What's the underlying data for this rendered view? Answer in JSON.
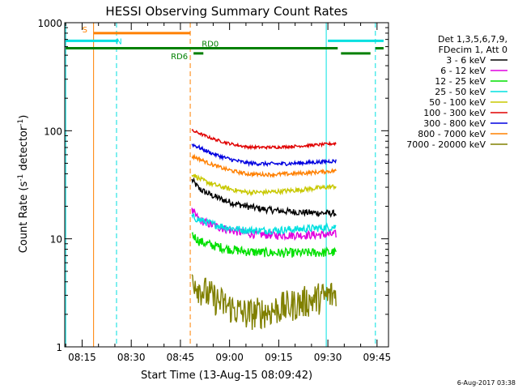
{
  "chart_data": {
    "type": "line",
    "title": "HESSI Observing Summary Count Rates",
    "xlabel": "Start Time (13-Aug-15 08:09:42)",
    "ylabel_main": "Count Rate (s",
    "ylabel_sup1": "-1",
    "ylabel_mid": " detector",
    "ylabel_sup2": "-1",
    "ylabel_end": ")",
    "x_range_minutes": [
      "08:09:42",
      "09:48:30"
    ],
    "y_scale": "log",
    "ylim": [
      1,
      1000
    ],
    "y_ticks": [
      {
        "value": 1,
        "label": "1"
      },
      {
        "value": 10,
        "label": "10"
      },
      {
        "value": 100,
        "label": "100"
      },
      {
        "value": 1000,
        "label": "1000"
      }
    ],
    "x_ticks": [
      {
        "time": "08:15",
        "label": "08:15"
      },
      {
        "time": "08:30",
        "label": "08:30"
      },
      {
        "time": "08:45",
        "label": "08:45"
      },
      {
        "time": "09:00",
        "label": "09:00"
      },
      {
        "time": "09:15",
        "label": "09:15"
      },
      {
        "time": "09:30",
        "label": "09:30"
      },
      {
        "time": "09:45",
        "label": "09:45"
      }
    ],
    "legend_header": [
      "Det 1,3,5,6,7,9,",
      "FDecim 1, Att 0"
    ],
    "legend_position": "right",
    "series": [
      {
        "name": "3 - 6 keV",
        "color": "#000000",
        "start": 35.0,
        "peak": 29,
        "min": 17,
        "end": 17,
        "noise": 0.07
      },
      {
        "name": "6 - 12 keV",
        "color": "#e000e0",
        "start": 18.0,
        "peak": 15,
        "min": 10,
        "end": 11,
        "noise": 0.09
      },
      {
        "name": "12 - 25 keV",
        "color": "#00e000",
        "start": 11.0,
        "peak": 9.5,
        "min": 7.0,
        "end": 7.5,
        "noise": 0.1
      },
      {
        "name": "25 - 50 keV",
        "color": "#00e0e0",
        "start": 16.0,
        "peak": 15,
        "min": 11,
        "end": 13,
        "noise": 0.08
      },
      {
        "name": "50 - 100 keV",
        "color": "#c8c800",
        "start": 40.0,
        "peak": 36,
        "min": 24,
        "end": 31,
        "noise": 0.05
      },
      {
        "name": "100 - 300 keV",
        "color": "#e00000",
        "start": 100.0,
        "peak": 95,
        "min": 63,
        "end": 77,
        "noise": 0.03
      },
      {
        "name": "300 - 800 keV",
        "color": "#0000e0",
        "start": 75.0,
        "peak": 70,
        "min": 44,
        "end": 53,
        "noise": 0.04
      },
      {
        "name": "800 - 7000 keV",
        "color": "#ff8000",
        "start": 58.0,
        "peak": 55,
        "min": 35,
        "end": 43,
        "noise": 0.04
      },
      {
        "name": "7000 - 20000 keV",
        "color": "#808000",
        "start": 4.5,
        "peak": 3.5,
        "min": 1.5,
        "end": 3.2,
        "noise": 0.35
      }
    ],
    "data_window": [
      "08:48:30",
      "09:32:30"
    ],
    "flags": [
      {
        "label": "S",
        "color": "#ff8000",
        "start": "08:18:30",
        "end": "08:48:00",
        "level": 800
      },
      {
        "label": "N",
        "color": "#00e0e0",
        "start": "08:10:00",
        "end": "08:26:00",
        "level": 680
      },
      {
        "label": "N",
        "color": "#00e0e0",
        "start": "09:30:00",
        "end": "09:47:00",
        "level": 680
      },
      {
        "label": "RD0",
        "color": "#008000",
        "start": "08:10:00",
        "end": "09:33:00",
        "level": 580
      },
      {
        "label": "RD6",
        "color": "#008000",
        "start": "08:49:00",
        "end": "08:52:00",
        "level": 520
      },
      {
        "label": "RD0",
        "color": "#008000",
        "start": "09:34:00",
        "end": "09:43:00",
        "level": 520
      },
      {
        "label": "RD0",
        "color": "#008000",
        "start": "09:44:30",
        "end": "09:47:00",
        "level": 580
      }
    ],
    "vertical_markers": [
      {
        "time": "08:10:00",
        "color": "#00e0e0",
        "style": "solid"
      },
      {
        "time": "08:18:30",
        "color": "#ff8000",
        "style": "solid"
      },
      {
        "time": "08:25:30",
        "color": "#00e0e0",
        "style": "dashed"
      },
      {
        "time": "08:48:00",
        "color": "#ff8000",
        "style": "dashed"
      },
      {
        "time": "09:29:30",
        "color": "#00e0e0",
        "style": "solid"
      },
      {
        "time": "09:44:30",
        "color": "#00e0e0",
        "style": "dashed"
      }
    ],
    "footer_date": "6-Aug-2017 03:38"
  }
}
